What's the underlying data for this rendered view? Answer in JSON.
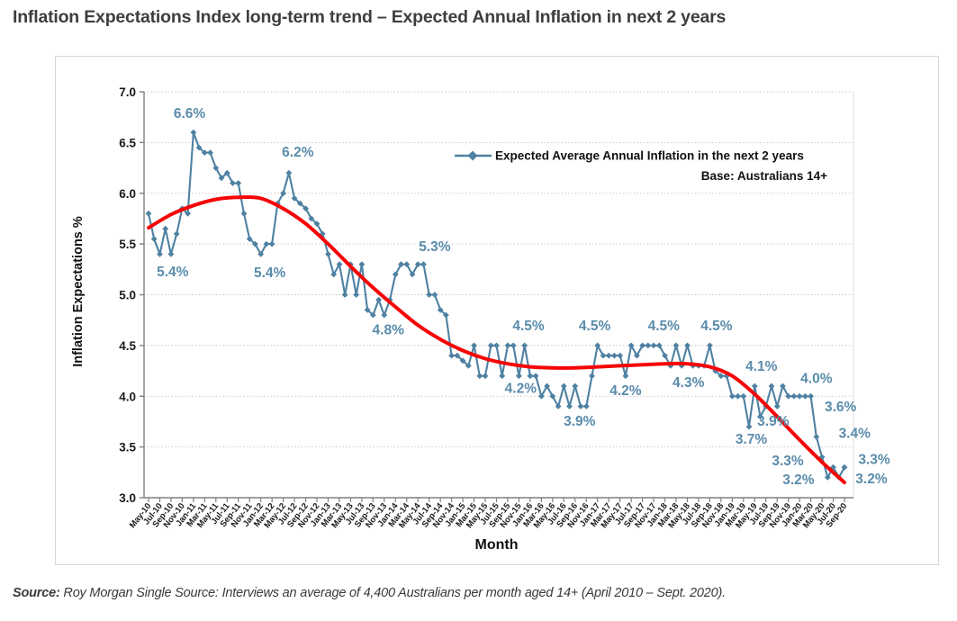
{
  "page": {
    "title": "Inflation Expectations Index long-term trend – Expected Annual Inflation in next 2 years",
    "source_label": "Source:",
    "source_text": " Roy Morgan Single Source: Interviews an average of 4,400 Australians per month aged 14+ (April 2010 – Sept. 2020)."
  },
  "chart_data": {
    "type": "line",
    "xlabel": "Month",
    "ylabel": "Inflation Expectations %",
    "legend": "Expected Average Annual Inflation in the next 2 years",
    "legend_note": "Base: Australians 14+",
    "ylim": [
      3.0,
      7.0
    ],
    "ytick_labels": [
      "7.0",
      "6.5",
      "6.0",
      "5.5",
      "5.0",
      "4.5",
      "4.0",
      "3.5",
      "3.0"
    ],
    "x_start": "May-10",
    "x_end": "Sep-20",
    "frequency": "monthly",
    "x_tick_labels": [
      "May-10",
      "Jul-10",
      "Sep-10",
      "Nov-10",
      "Jan-11",
      "Mar-11",
      "May-11",
      "Jul-11",
      "Sep-11",
      "Nov-11",
      "Jan-12",
      "Mar-12",
      "May-12",
      "Jul-12",
      "Sep-12",
      "Nov-12",
      "Jan-13",
      "Mar-13",
      "May-13",
      "Jul-13",
      "Sep-13",
      "Nov-13",
      "Jan-14",
      "Mar-14",
      "May-14",
      "Jul-14",
      "Sep-14",
      "Nov-14",
      "Jan-15",
      "Mar-15",
      "May-15",
      "Jul-15",
      "Sep-15",
      "Nov-15",
      "Jan-16",
      "Mar-16",
      "May-16",
      "Jul-16",
      "Sep-16",
      "Nov-16",
      "Jan-17",
      "Mar-17",
      "May-17",
      "Jul-17",
      "Sep-17",
      "Nov-17",
      "Jan-18",
      "Mar-18",
      "May-18",
      "Jul-18",
      "Sep-18",
      "Nov-18",
      "Jan-19",
      "Mar-19",
      "May-19",
      "Jul-19",
      "Sep-19",
      "Nov-19",
      "Jan-20",
      "Mar-20",
      "May-20",
      "Jul-20",
      "Sep-20"
    ],
    "series": [
      {
        "name": "Expected Average Annual Inflation in the next 2 years",
        "color": "#4e81a2",
        "values": [
          5.8,
          5.55,
          5.4,
          5.65,
          5.4,
          5.6,
          5.85,
          5.8,
          6.6,
          6.45,
          6.4,
          6.4,
          6.25,
          6.15,
          6.2,
          6.1,
          6.1,
          5.8,
          5.55,
          5.5,
          5.4,
          5.5,
          5.5,
          5.9,
          6.0,
          6.2,
          5.95,
          5.9,
          5.85,
          5.75,
          5.7,
          5.6,
          5.4,
          5.2,
          5.3,
          5.0,
          5.3,
          5.0,
          5.3,
          4.85,
          4.8,
          4.95,
          4.8,
          4.95,
          5.2,
          5.3,
          5.3,
          5.2,
          5.3,
          5.3,
          5.0,
          5.0,
          4.85,
          4.8,
          4.4,
          4.4,
          4.35,
          4.3,
          4.5,
          4.2,
          4.2,
          4.5,
          4.5,
          4.2,
          4.5,
          4.5,
          4.2,
          4.5,
          4.2,
          4.2,
          4.0,
          4.1,
          4.0,
          3.9,
          4.1,
          3.9,
          4.1,
          3.9,
          3.9,
          4.2,
          4.5,
          4.4,
          4.4,
          4.4,
          4.4,
          4.2,
          4.5,
          4.4,
          4.5,
          4.5,
          4.5,
          4.5,
          4.4,
          4.3,
          4.5,
          4.3,
          4.5,
          4.3,
          4.3,
          4.3,
          4.5,
          4.25,
          4.2,
          4.2,
          4.0,
          4.0,
          4.0,
          3.7,
          4.1,
          3.8,
          3.9,
          4.1,
          3.9,
          4.1,
          4.0,
          4.0,
          4.0,
          4.0,
          4.0,
          3.6,
          3.4,
          3.2,
          3.3,
          3.2,
          3.3
        ]
      }
    ],
    "trend": {
      "name": "long-term trend",
      "color": "#f50506",
      "points": [
        [
          0,
          5.66
        ],
        [
          4,
          5.79
        ],
        [
          8,
          5.88
        ],
        [
          12,
          5.94
        ],
        [
          16,
          5.96
        ],
        [
          20,
          5.95
        ],
        [
          24,
          5.85
        ],
        [
          28,
          5.7
        ],
        [
          32,
          5.5
        ],
        [
          36,
          5.28
        ],
        [
          40,
          5.07
        ],
        [
          44,
          4.88
        ],
        [
          48,
          4.7
        ],
        [
          52,
          4.56
        ],
        [
          56,
          4.45
        ],
        [
          60,
          4.37
        ],
        [
          64,
          4.32
        ],
        [
          68,
          4.29
        ],
        [
          72,
          4.28
        ],
        [
          76,
          4.28
        ],
        [
          80,
          4.29
        ],
        [
          84,
          4.3
        ],
        [
          88,
          4.31
        ],
        [
          92,
          4.32
        ],
        [
          96,
          4.32
        ],
        [
          100,
          4.29
        ],
        [
          104,
          4.2
        ],
        [
          108,
          4.02
        ],
        [
          112,
          3.8
        ],
        [
          116,
          3.57
        ],
        [
          120,
          3.35
        ],
        [
          124,
          3.15
        ]
      ]
    },
    "annotations": [
      {
        "text": "6.6%",
        "m": 7.3,
        "v": 6.79
      },
      {
        "text": "5.4%",
        "m": 4.3,
        "v": 5.23
      },
      {
        "text": "5.4%",
        "m": 21.6,
        "v": 5.22
      },
      {
        "text": "6.2%",
        "m": 26.6,
        "v": 6.41
      },
      {
        "text": "4.8%",
        "m": 42.7,
        "v": 4.66
      },
      {
        "text": "5.3%",
        "m": 51.0,
        "v": 5.48
      },
      {
        "text": "4.5%",
        "m": 67.7,
        "v": 4.7
      },
      {
        "text": "4.2%",
        "m": 66.3,
        "v": 4.08
      },
      {
        "text": "3.9%",
        "m": 76.8,
        "v": 3.76
      },
      {
        "text": "4.5%",
        "m": 79.5,
        "v": 4.7
      },
      {
        "text": "4.2%",
        "m": 85.0,
        "v": 4.06
      },
      {
        "text": "4.5%",
        "m": 91.8,
        "v": 4.7
      },
      {
        "text": "4.3%",
        "m": 96.2,
        "v": 4.14
      },
      {
        "text": "4.5%",
        "m": 101.2,
        "v": 4.7
      },
      {
        "text": "3.7%",
        "m": 107.4,
        "v": 3.58
      },
      {
        "text": "4.1%",
        "m": 109.2,
        "v": 4.3
      },
      {
        "text": "3.9%",
        "m": 111.3,
        "v": 3.76
      },
      {
        "text": "4.0%",
        "m": 119.0,
        "v": 4.18
      },
      {
        "text": "3.6%",
        "m": 123.3,
        "v": 3.9
      },
      {
        "text": "3.4%",
        "m": 125.8,
        "v": 3.64
      },
      {
        "text": "3.3%",
        "m": 113.9,
        "v": 3.37
      },
      {
        "text": "3.2%",
        "m": 115.8,
        "v": 3.18
      },
      {
        "text": "3.3%",
        "m": 129.3,
        "v": 3.38
      },
      {
        "text": "3.2%",
        "m": 128.8,
        "v": 3.19
      }
    ],
    "colors": {
      "series": "#4e81a2",
      "annotation_text": "#5a8cab",
      "trend": "#f50506",
      "grid": "#c9c9c9",
      "axis": "#808080",
      "tick_text": "#1a1a1a"
    },
    "legend_position": "top-right-inside",
    "grid": "horizontal-dotted"
  }
}
